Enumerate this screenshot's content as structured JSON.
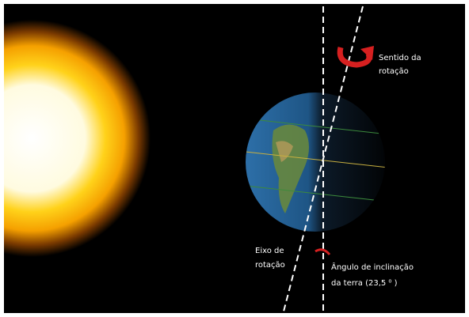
{
  "labels": {
    "rotation_direction": [
      "Sentido da",
      "rotação"
    ],
    "rotation_axis": [
      "Eixo de",
      "rotação"
    ],
    "tilt_angle": [
      "Ângulo de inclinação",
      "da terra (23,5 ⁰ )"
    ]
  }
}
